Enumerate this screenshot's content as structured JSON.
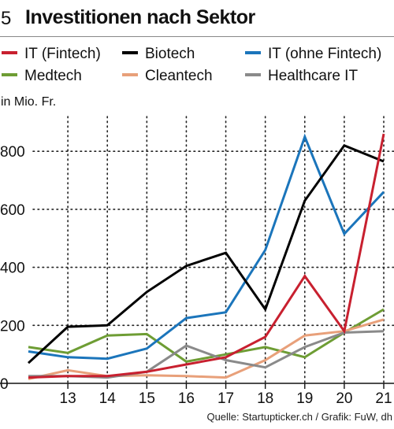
{
  "header": {
    "figure_number": "5",
    "title": "Investitionen nach Sektor"
  },
  "unit_label": "in Mio. Fr.",
  "source": "Quelle: Startupticker.ch / Grafik: FuW, dh",
  "chart_data": {
    "type": "line",
    "title": "Investitionen nach Sektor",
    "ylabel": "in Mio. Fr.",
    "xlabel": "",
    "x": [
      12,
      13,
      14,
      15,
      16,
      17,
      18,
      19,
      20,
      21
    ],
    "x_tick_labels": [
      "13",
      "14",
      "15",
      "16",
      "17",
      "18",
      "19",
      "20",
      "21"
    ],
    "y_tick_labels": [
      "0",
      "200",
      "400",
      "600",
      "800"
    ],
    "y_ticks": [
      0,
      200,
      400,
      600,
      800
    ],
    "ylim": [
      0,
      920
    ],
    "xlim": [
      12,
      21.1
    ],
    "grid": "horizontal dotted",
    "legend_placement": "top",
    "series": [
      {
        "name": "IT (Fintech)",
        "color": "#c8202f",
        "values": [
          20,
          25,
          25,
          40,
          65,
          90,
          160,
          370,
          180,
          860
        ]
      },
      {
        "name": "Biotech",
        "color": "#000000",
        "values": [
          70,
          195,
          200,
          315,
          405,
          450,
          255,
          630,
          820,
          765
        ]
      },
      {
        "name": "IT (ohne Fintech)",
        "color": "#1b75bb",
        "values": [
          110,
          90,
          85,
          120,
          225,
          245,
          460,
          850,
          515,
          660
        ]
      },
      {
        "name": "Medtech",
        "color": "#6e9d34",
        "values": [
          125,
          105,
          165,
          170,
          75,
          100,
          125,
          90,
          175,
          255
        ]
      },
      {
        "name": "Cleantech",
        "color": "#e8a07a",
        "values": [
          15,
          45,
          25,
          28,
          25,
          20,
          80,
          165,
          180,
          220
        ]
      },
      {
        "name": "Healthcare IT",
        "color": "#8a8a8a",
        "values": [
          25,
          25,
          20,
          40,
          130,
          80,
          55,
          125,
          175,
          180
        ]
      }
    ]
  }
}
